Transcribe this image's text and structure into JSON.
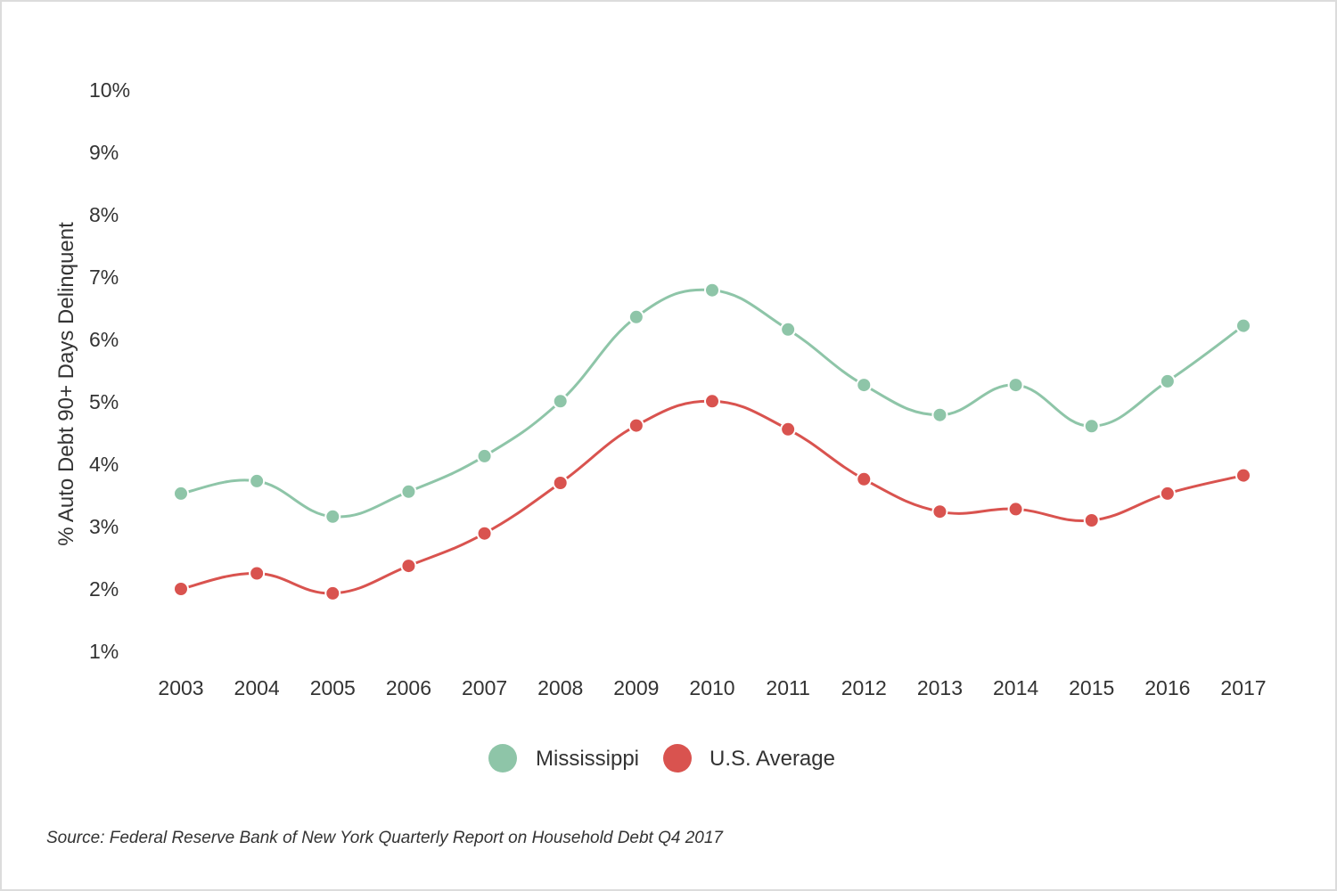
{
  "chart_data": {
    "type": "line",
    "ylabel": "% Auto Debt 90+ Days Delinquent",
    "xlabel": "",
    "ylim": [
      1,
      10
    ],
    "yticks": [
      1,
      2,
      3,
      4,
      5,
      6,
      7,
      8,
      9,
      10
    ],
    "ytick_labels": [
      "1%",
      "2%",
      "3%",
      "4%",
      "5%",
      "6%",
      "7%",
      "8%",
      "9%",
      "10%"
    ],
    "categories": [
      "2003",
      "2004",
      "2005",
      "2006",
      "2007",
      "2008",
      "2009",
      "2010",
      "2011",
      "2012",
      "2013",
      "2014",
      "2015",
      "2016",
      "2017"
    ],
    "series": [
      {
        "name": "Mississippi",
        "color": "#8ec5a8",
        "values": [
          3.53,
          3.73,
          3.16,
          3.56,
          4.13,
          5.01,
          6.36,
          6.79,
          6.16,
          5.27,
          4.79,
          5.27,
          4.61,
          5.33,
          6.22
        ]
      },
      {
        "name": "U.S. Average",
        "color": "#d9534f",
        "values": [
          2.0,
          2.25,
          1.93,
          2.37,
          2.89,
          3.7,
          4.62,
          5.01,
          4.56,
          3.76,
          3.24,
          3.28,
          3.1,
          3.53,
          3.82
        ]
      }
    ],
    "grid": false,
    "legend_position": "bottom-center"
  },
  "source_text": "Source: Federal Reserve Bank of New York Quarterly Report on Household Debt Q4 2017"
}
